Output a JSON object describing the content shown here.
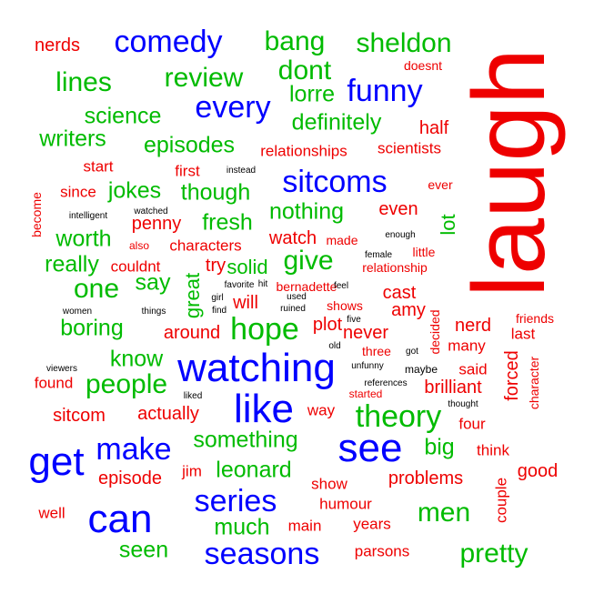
{
  "palette": {
    "blue": "#0000ff",
    "red": "#ee0000",
    "green": "#00bb00",
    "black": "#000000"
  },
  "words": [
    {
      "text": "laugh",
      "tier": 1,
      "color": "red"
    },
    {
      "text": "comedy",
      "tier": 3,
      "color": "blue"
    },
    {
      "text": "funny",
      "tier": 3,
      "color": "blue"
    },
    {
      "text": "sitcoms",
      "tier": 3,
      "color": "blue"
    },
    {
      "text": "watching",
      "tier": 2,
      "color": "blue"
    },
    {
      "text": "like",
      "tier": 2,
      "color": "blue"
    },
    {
      "text": "see",
      "tier": 2,
      "color": "blue"
    },
    {
      "text": "get",
      "tier": 2,
      "color": "blue"
    },
    {
      "text": "can",
      "tier": 2,
      "color": "blue"
    },
    {
      "text": "make",
      "tier": 3,
      "color": "blue"
    },
    {
      "text": "series",
      "tier": 3,
      "color": "blue"
    },
    {
      "text": "seasons",
      "tier": 3,
      "color": "blue"
    },
    {
      "text": "every",
      "tier": 3,
      "color": "blue"
    },
    {
      "text": "theory",
      "tier": 3,
      "color": "green"
    },
    {
      "text": "hope",
      "tier": 3,
      "color": "green"
    },
    {
      "text": "bang",
      "tier": 4,
      "color": "green"
    },
    {
      "text": "review",
      "tier": 4,
      "color": "green"
    },
    {
      "text": "sheldon",
      "tier": 4,
      "color": "green"
    },
    {
      "text": "lines",
      "tier": 4,
      "color": "green"
    },
    {
      "text": "dont",
      "tier": 4,
      "color": "green"
    },
    {
      "text": "lorre",
      "tier": 5,
      "color": "green"
    },
    {
      "text": "science",
      "tier": 5,
      "color": "green"
    },
    {
      "text": "definitely",
      "tier": 5,
      "color": "green"
    },
    {
      "text": "writers",
      "tier": 5,
      "color": "green"
    },
    {
      "text": "episodes",
      "tier": 5,
      "color": "green"
    },
    {
      "text": "jokes",
      "tier": 5,
      "color": "green"
    },
    {
      "text": "though",
      "tier": 5,
      "color": "green"
    },
    {
      "text": "nothing",
      "tier": 5,
      "color": "green"
    },
    {
      "text": "fresh",
      "tier": 5,
      "color": "green"
    },
    {
      "text": "worth",
      "tier": 5,
      "color": "green"
    },
    {
      "text": "really",
      "tier": 5,
      "color": "green"
    },
    {
      "text": "give",
      "tier": 4,
      "color": "green"
    },
    {
      "text": "one",
      "tier": 4,
      "color": "green"
    },
    {
      "text": "say",
      "tier": 5,
      "color": "green"
    },
    {
      "text": "boring",
      "tier": 5,
      "color": "green"
    },
    {
      "text": "know",
      "tier": 5,
      "color": "green"
    },
    {
      "text": "people",
      "tier": 4,
      "color": "green"
    },
    {
      "text": "something",
      "tier": 5,
      "color": "green"
    },
    {
      "text": "leonard",
      "tier": 5,
      "color": "green"
    },
    {
      "text": "big",
      "tier": 5,
      "color": "green"
    },
    {
      "text": "much",
      "tier": 5,
      "color": "green"
    },
    {
      "text": "men",
      "tier": 4,
      "color": "green"
    },
    {
      "text": "seen",
      "tier": 5,
      "color": "green"
    },
    {
      "text": "pretty",
      "tier": 4,
      "color": "green"
    },
    {
      "text": "lot",
      "tier": 6,
      "color": "green"
    },
    {
      "text": "great",
      "tier": 6,
      "color": "green"
    },
    {
      "text": "solid",
      "tier": 6,
      "color": "green"
    },
    {
      "text": "nerds",
      "tier": 7,
      "color": "red"
    },
    {
      "text": "doesnt",
      "tier": 9,
      "color": "red"
    },
    {
      "text": "half",
      "tier": 7,
      "color": "red"
    },
    {
      "text": "relationships",
      "tier": 8,
      "color": "red"
    },
    {
      "text": "scientists",
      "tier": 8,
      "color": "red"
    },
    {
      "text": "start",
      "tier": 8,
      "color": "red"
    },
    {
      "text": "first",
      "tier": 8,
      "color": "red"
    },
    {
      "text": "ever",
      "tier": 9,
      "color": "red"
    },
    {
      "text": "since",
      "tier": 8,
      "color": "red"
    },
    {
      "text": "become",
      "tier": 9,
      "color": "red"
    },
    {
      "text": "penny",
      "tier": 7,
      "color": "red"
    },
    {
      "text": "even",
      "tier": 7,
      "color": "red"
    },
    {
      "text": "watch",
      "tier": 7,
      "color": "red"
    },
    {
      "text": "made",
      "tier": 9,
      "color": "red"
    },
    {
      "text": "also",
      "tier": 10,
      "color": "red"
    },
    {
      "text": "characters",
      "tier": 8,
      "color": "red"
    },
    {
      "text": "couldnt",
      "tier": 8,
      "color": "red"
    },
    {
      "text": "try",
      "tier": 7,
      "color": "red"
    },
    {
      "text": "little",
      "tier": 9,
      "color": "red"
    },
    {
      "text": "relationship",
      "tier": 9,
      "color": "red"
    },
    {
      "text": "will",
      "tier": 7,
      "color": "red"
    },
    {
      "text": "bernadette",
      "tier": 9,
      "color": "red"
    },
    {
      "text": "cast",
      "tier": 7,
      "color": "red"
    },
    {
      "text": "shows",
      "tier": 9,
      "color": "red"
    },
    {
      "text": "amy",
      "tier": 7,
      "color": "red"
    },
    {
      "text": "plot",
      "tier": 7,
      "color": "red"
    },
    {
      "text": "decided",
      "tier": 9,
      "color": "red"
    },
    {
      "text": "nerd",
      "tier": 7,
      "color": "red"
    },
    {
      "text": "friends",
      "tier": 9,
      "color": "red"
    },
    {
      "text": "last",
      "tier": 8,
      "color": "red"
    },
    {
      "text": "around",
      "tier": 7,
      "color": "red"
    },
    {
      "text": "never",
      "tier": 7,
      "color": "red"
    },
    {
      "text": "many",
      "tier": 8,
      "color": "red"
    },
    {
      "text": "three",
      "tier": 9,
      "color": "red"
    },
    {
      "text": "found",
      "tier": 8,
      "color": "red"
    },
    {
      "text": "said",
      "tier": 8,
      "color": "red"
    },
    {
      "text": "forced",
      "tier": 7,
      "color": "red"
    },
    {
      "text": "brilliant",
      "tier": 7,
      "color": "red"
    },
    {
      "text": "character",
      "tier": 9,
      "color": "red"
    },
    {
      "text": "started",
      "tier": 10,
      "color": "red"
    },
    {
      "text": "way",
      "tier": 8,
      "color": "red"
    },
    {
      "text": "sitcom",
      "tier": 7,
      "color": "red"
    },
    {
      "text": "actually",
      "tier": 7,
      "color": "red"
    },
    {
      "text": "four",
      "tier": 8,
      "color": "red"
    },
    {
      "text": "think",
      "tier": 8,
      "color": "red"
    },
    {
      "text": "jim",
      "tier": 8,
      "color": "red"
    },
    {
      "text": "episode",
      "tier": 7,
      "color": "red"
    },
    {
      "text": "show",
      "tier": 8,
      "color": "red"
    },
    {
      "text": "problems",
      "tier": 7,
      "color": "red"
    },
    {
      "text": "good",
      "tier": 7,
      "color": "red"
    },
    {
      "text": "couple",
      "tier": 8,
      "color": "red"
    },
    {
      "text": "humour",
      "tier": 8,
      "color": "red"
    },
    {
      "text": "well",
      "tier": 8,
      "color": "red"
    },
    {
      "text": "main",
      "tier": 8,
      "color": "red"
    },
    {
      "text": "years",
      "tier": 8,
      "color": "red"
    },
    {
      "text": "parsons",
      "tier": 8,
      "color": "red"
    },
    {
      "text": "instead",
      "tier": 11,
      "color": "black"
    },
    {
      "text": "watched",
      "tier": 11,
      "color": "black"
    },
    {
      "text": "intelligent",
      "tier": 11,
      "color": "black"
    },
    {
      "text": "enough",
      "tier": 11,
      "color": "black"
    },
    {
      "text": "female",
      "tier": 11,
      "color": "black"
    },
    {
      "text": "favorite",
      "tier": 11,
      "color": "black"
    },
    {
      "text": "hit",
      "tier": 11,
      "color": "black"
    },
    {
      "text": "feel",
      "tier": 11,
      "color": "black"
    },
    {
      "text": "girl",
      "tier": 11,
      "color": "black"
    },
    {
      "text": "used",
      "tier": 11,
      "color": "black"
    },
    {
      "text": "find",
      "tier": 11,
      "color": "black"
    },
    {
      "text": "ruined",
      "tier": 11,
      "color": "black"
    },
    {
      "text": "women",
      "tier": 11,
      "color": "black"
    },
    {
      "text": "things",
      "tier": 11,
      "color": "black"
    },
    {
      "text": "five",
      "tier": 11,
      "color": "black"
    },
    {
      "text": "old",
      "tier": 11,
      "color": "black"
    },
    {
      "text": "got",
      "tier": 11,
      "color": "black"
    },
    {
      "text": "viewers",
      "tier": 11,
      "color": "black"
    },
    {
      "text": "unfunny",
      "tier": 11,
      "color": "black"
    },
    {
      "text": "maybe",
      "tier": 10,
      "color": "black"
    },
    {
      "text": "references",
      "tier": 11,
      "color": "black"
    },
    {
      "text": "liked",
      "tier": 11,
      "color": "black"
    },
    {
      "text": "thought",
      "tier": 11,
      "color": "black"
    }
  ]
}
